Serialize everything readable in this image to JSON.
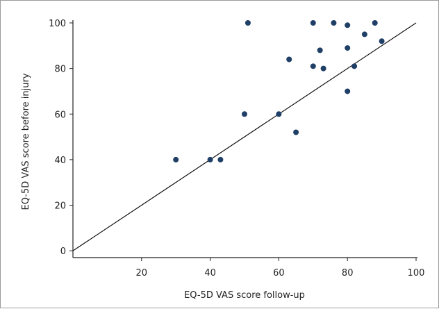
{
  "chart_data": {
    "type": "scatter",
    "title": "",
    "xlabel": "EQ-5D VAS score follow-up",
    "ylabel": "EQ-5D VAS score before injury",
    "xlim": [
      0,
      100
    ],
    "ylim": [
      -3,
      100
    ],
    "x_ticks": [
      "20",
      "40",
      "60",
      "80",
      "100"
    ],
    "y_ticks": [
      "0",
      "20",
      "40",
      "60",
      "80",
      "100"
    ],
    "grid": false,
    "legend": "none",
    "reference_line": {
      "from": [
        0,
        0
      ],
      "to": [
        100,
        100
      ],
      "label": ""
    },
    "series": [
      {
        "color": "#1f3f66",
        "points": [
          {
            "x": 30,
            "y": 40
          },
          {
            "x": 40,
            "y": 40
          },
          {
            "x": 43,
            "y": 40
          },
          {
            "x": 50,
            "y": 60
          },
          {
            "x": 51,
            "y": 100
          },
          {
            "x": 60,
            "y": 60
          },
          {
            "x": 63,
            "y": 84
          },
          {
            "x": 65,
            "y": 52
          },
          {
            "x": 70,
            "y": 100
          },
          {
            "x": 70,
            "y": 81
          },
          {
            "x": 72,
            "y": 88
          },
          {
            "x": 73,
            "y": 80
          },
          {
            "x": 76,
            "y": 100
          },
          {
            "x": 80,
            "y": 99
          },
          {
            "x": 80,
            "y": 89
          },
          {
            "x": 80,
            "y": 70
          },
          {
            "x": 82,
            "y": 81
          },
          {
            "x": 85,
            "y": 95
          },
          {
            "x": 88,
            "y": 100
          },
          {
            "x": 90,
            "y": 92
          }
        ]
      }
    ]
  }
}
